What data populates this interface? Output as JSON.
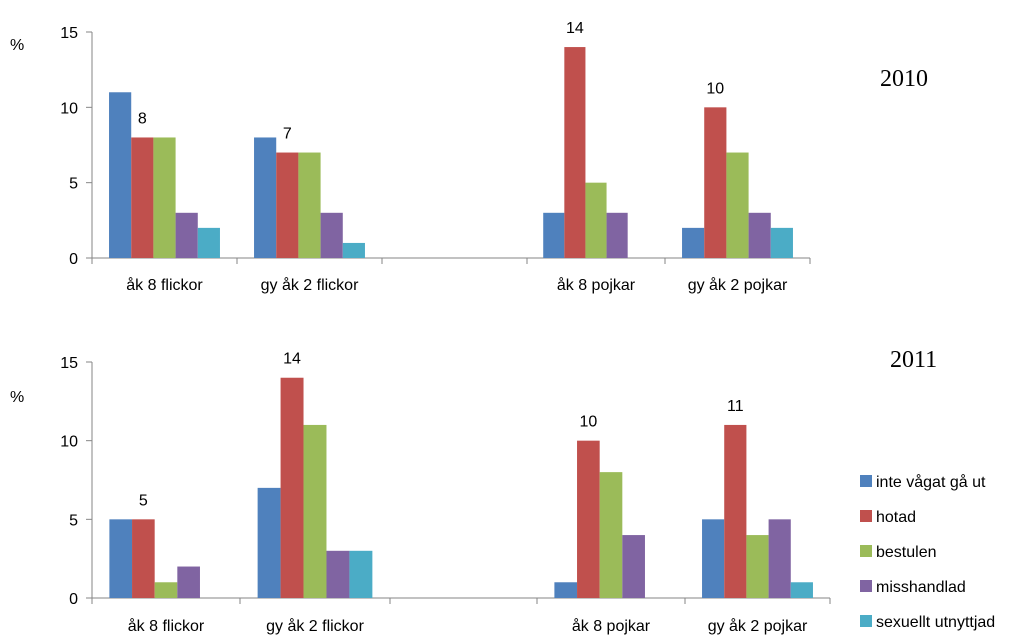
{
  "chart_data": [
    {
      "type": "bar",
      "title": "2010",
      "ylabel": "%",
      "ylim": [
        0,
        15
      ],
      "yticks": [
        0,
        5,
        10,
        15
      ],
      "categories": [
        "åk 8 flickor",
        "gy åk 2 flickor",
        "",
        "åk 8 pojkar",
        "gy åk 2 pojkar"
      ],
      "series": [
        {
          "name": "inte vågat gå ut",
          "values": [
            11,
            8,
            null,
            3,
            2
          ]
        },
        {
          "name": "hotad",
          "values": [
            8,
            7,
            null,
            14,
            10
          ]
        },
        {
          "name": "bestulen",
          "values": [
            8,
            7,
            null,
            5,
            7
          ]
        },
        {
          "name": "misshandlad",
          "values": [
            3,
            3,
            null,
            3,
            3
          ]
        },
        {
          "name": "sexuellt utnyttjad",
          "values": [
            2,
            1,
            null,
            null,
            2
          ]
        }
      ],
      "annotations": [
        {
          "category": 0,
          "series": 1,
          "text": "8"
        },
        {
          "category": 1,
          "series": 1,
          "text": "7"
        },
        {
          "category": 3,
          "series": 1,
          "text": "14"
        },
        {
          "category": 4,
          "series": 1,
          "text": "10"
        }
      ],
      "grid": false
    },
    {
      "type": "bar",
      "title": "2011",
      "ylabel": "%",
      "ylim": [
        0,
        15
      ],
      "yticks": [
        0,
        5,
        10,
        15
      ],
      "categories": [
        "åk 8 flickor",
        "gy åk 2 flickor",
        "",
        "åk 8 pojkar",
        "gy åk 2 pojkar"
      ],
      "series": [
        {
          "name": "inte vågat gå ut",
          "values": [
            5,
            7,
            null,
            1,
            5
          ]
        },
        {
          "name": "hotad",
          "values": [
            5,
            14,
            null,
            10,
            11
          ]
        },
        {
          "name": "bestulen",
          "values": [
            1,
            11,
            null,
            8,
            4
          ]
        },
        {
          "name": "misshandlad",
          "values": [
            2,
            3,
            null,
            4,
            5
          ]
        },
        {
          "name": "sexuellt utnyttjad",
          "values": [
            null,
            3,
            null,
            null,
            1
          ]
        }
      ],
      "annotations": [
        {
          "category": 0,
          "series": 1,
          "text": "5"
        },
        {
          "category": 1,
          "series": 1,
          "text": "14"
        },
        {
          "category": 3,
          "series": 1,
          "text": "10"
        },
        {
          "category": 4,
          "series": 1,
          "text": "11"
        }
      ],
      "grid": false
    }
  ],
  "legend": {
    "placement": "right",
    "items": [
      {
        "label": "inte vågat gå ut",
        "color": "#4F81BD"
      },
      {
        "label": "hotad",
        "color": "#C0504D"
      },
      {
        "label": "bestulen",
        "color": "#9BBB59"
      },
      {
        "label": "misshandlad",
        "color": "#8064A2"
      },
      {
        "label": "sexuellt utnyttjad",
        "color": "#4BACC6"
      }
    ]
  }
}
